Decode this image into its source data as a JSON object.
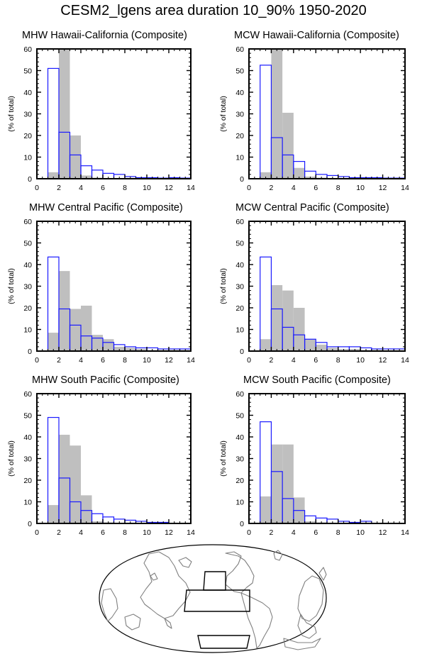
{
  "title": "CESM2_lgens area duration 10_90% 1950-2020",
  "colors": {
    "gray_fill": "#bfbfbf",
    "blue_outline": "#1a1aff",
    "map_coast": "#808080"
  },
  "chart_data": [
    {
      "type": "bar",
      "title": "MHW Hawaii-California (Composite)",
      "ylabel": "(% of total)",
      "xlim": [
        0,
        14
      ],
      "ylim": [
        0,
        60
      ],
      "xticks": [
        0,
        2,
        4,
        6,
        8,
        10,
        12,
        14
      ],
      "yticks": [
        0,
        10,
        20,
        30,
        40,
        50,
        60
      ],
      "bin_edges": [
        1,
        2,
        3,
        4,
        5,
        6,
        7,
        8,
        9,
        10,
        11,
        12,
        13,
        14
      ],
      "series": [
        {
          "style": "gray-filled",
          "values": [
            3,
            63,
            20,
            1.5,
            0.5,
            0.3,
            0.2,
            0.1,
            0.1,
            0,
            0,
            0,
            0
          ]
        },
        {
          "style": "blue-outline",
          "values": [
            51,
            21.5,
            11,
            6,
            4,
            2.5,
            2,
            1,
            0.5,
            0.5,
            0.3,
            0.5,
            0.3
          ]
        }
      ]
    },
    {
      "type": "bar",
      "title": "MCW Hawaii-California (Composite)",
      "ylabel": "(% of total)",
      "xlim": [
        0,
        14
      ],
      "ylim": [
        0,
        60
      ],
      "xticks": [
        0,
        2,
        4,
        6,
        8,
        10,
        12,
        14
      ],
      "yticks": [
        0,
        10,
        20,
        30,
        40,
        50,
        60
      ],
      "bin_edges": [
        1,
        2,
        3,
        4,
        5,
        6,
        7,
        8,
        9,
        10,
        11,
        12,
        13,
        14
      ],
      "series": [
        {
          "style": "gray-filled",
          "values": [
            3,
            62,
            30.5,
            5,
            1,
            0.5,
            0.3,
            0.2,
            0.1,
            0,
            0,
            0,
            0
          ]
        },
        {
          "style": "blue-outline",
          "values": [
            52.5,
            19,
            11,
            8,
            3.5,
            2,
            1.5,
            1,
            0.5,
            0.5,
            0.5,
            0.3,
            0.3
          ]
        }
      ]
    },
    {
      "type": "bar",
      "title": "MHW Central Pacific (Composite)",
      "ylabel": "(% of total)",
      "xlim": [
        0,
        14
      ],
      "ylim": [
        0,
        60
      ],
      "xticks": [
        0,
        2,
        4,
        6,
        8,
        10,
        12,
        14
      ],
      "yticks": [
        0,
        10,
        20,
        30,
        40,
        50,
        60
      ],
      "bin_edges": [
        1,
        2,
        3,
        4,
        5,
        6,
        7,
        8,
        9,
        10,
        11,
        12,
        13,
        14
      ],
      "series": [
        {
          "style": "gray-filled",
          "values": [
            8.5,
            37,
            19.5,
            21,
            7.5,
            5.5,
            2,
            1.5,
            1,
            0.5,
            0.5,
            0.5,
            0.5
          ]
        },
        {
          "style": "blue-outline",
          "values": [
            43.5,
            19.5,
            12,
            7,
            6,
            4,
            3,
            2,
            1.5,
            1.5,
            1,
            1,
            1
          ]
        }
      ]
    },
    {
      "type": "bar",
      "title": "MCW Central Pacific (Composite)",
      "ylabel": "(% of total)",
      "xlim": [
        0,
        14
      ],
      "ylim": [
        0,
        60
      ],
      "xticks": [
        0,
        2,
        4,
        6,
        8,
        10,
        12,
        14
      ],
      "yticks": [
        0,
        10,
        20,
        30,
        40,
        50,
        60
      ],
      "bin_edges": [
        1,
        2,
        3,
        4,
        5,
        6,
        7,
        8,
        9,
        10,
        11,
        12,
        13,
        14
      ],
      "series": [
        {
          "style": "gray-filled",
          "values": [
            5.5,
            30.5,
            28,
            20,
            5.5,
            3,
            1.5,
            1,
            1,
            0.5,
            0.5,
            0.3,
            0.3
          ]
        },
        {
          "style": "blue-outline",
          "values": [
            43.5,
            19.5,
            11,
            7.5,
            5.5,
            4,
            2,
            2,
            2,
            1.5,
            1,
            1,
            1
          ]
        }
      ]
    },
    {
      "type": "bar",
      "title": "MHW South Pacific (Composite)",
      "ylabel": "(% of total)",
      "xlim": [
        0,
        14
      ],
      "ylim": [
        0,
        60
      ],
      "xticks": [
        0,
        2,
        4,
        6,
        8,
        10,
        12,
        14
      ],
      "yticks": [
        0,
        10,
        20,
        30,
        40,
        50,
        60
      ],
      "bin_edges": [
        1,
        2,
        3,
        4,
        5,
        6,
        7,
        8,
        9,
        10,
        11,
        12,
        13,
        14
      ],
      "series": [
        {
          "style": "gray-filled",
          "values": [
            8.5,
            41,
            36,
            13,
            1,
            0.5,
            0.3,
            0.2,
            0.1,
            0,
            0,
            0,
            0
          ]
        },
        {
          "style": "blue-outline",
          "values": [
            49,
            21,
            10,
            6,
            4.5,
            3,
            2,
            1.5,
            1,
            0.5,
            0.5,
            0,
            0
          ]
        }
      ]
    },
    {
      "type": "bar",
      "title": "MCW South Pacific (Composite)",
      "ylabel": "(% of total)",
      "xlim": [
        0,
        14
      ],
      "ylim": [
        0,
        60
      ],
      "xticks": [
        0,
        2,
        4,
        6,
        8,
        10,
        12,
        14
      ],
      "yticks": [
        0,
        10,
        20,
        30,
        40,
        50,
        60
      ],
      "bin_edges": [
        1,
        2,
        3,
        4,
        5,
        6,
        7,
        8,
        9,
        10,
        11,
        12,
        13,
        14
      ],
      "series": [
        {
          "style": "gray-filled",
          "values": [
            12.5,
            36.5,
            36.5,
            12,
            1,
            0.5,
            0.3,
            0.2,
            0,
            0,
            0,
            0,
            0
          ]
        },
        {
          "style": "blue-outline",
          "values": [
            47,
            24,
            11.5,
            6,
            3.5,
            2.5,
            2,
            1,
            0.5,
            1,
            0,
            0,
            0
          ]
        }
      ]
    }
  ]
}
